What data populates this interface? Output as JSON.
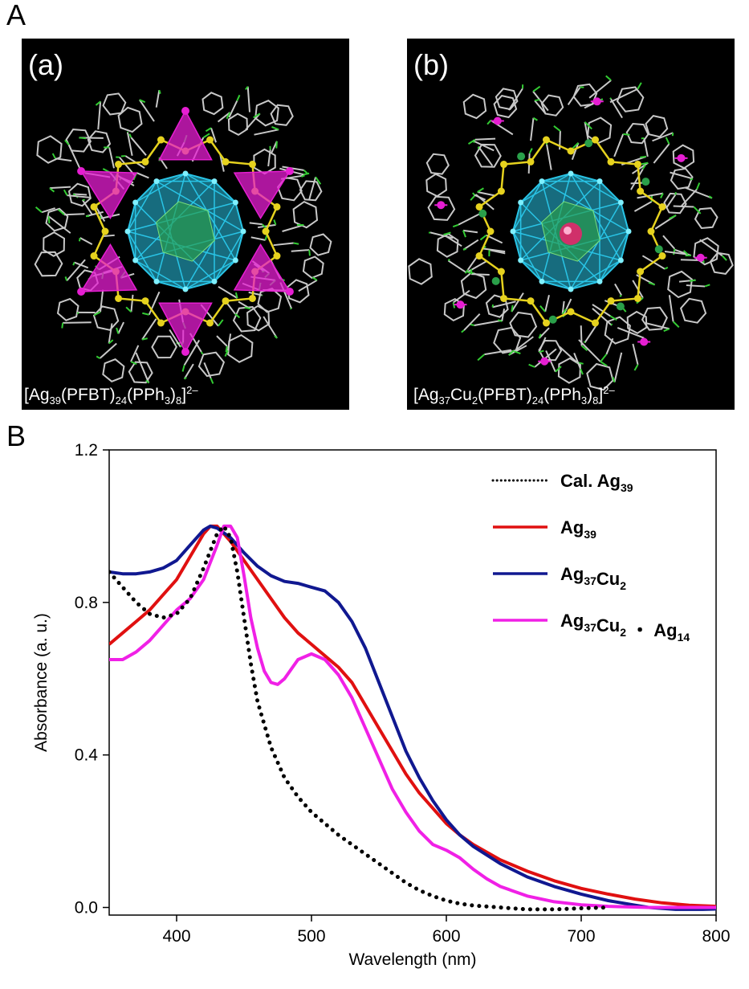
{
  "panels": {
    "A": {
      "letter": "A",
      "a": {
        "label": "(a)",
        "formula": {
          "lead": "[Ag",
          "s1": "39",
          "m1": "(PFBT)",
          "s2": "24",
          "m2": "(PPh",
          "s3": "3",
          "m3": ")",
          "s4": "8",
          "m4": "]",
          "charge": "2–"
        }
      },
      "b": {
        "label": "(b)",
        "formula": {
          "lead": "[Ag",
          "s1": "37",
          "m0": "Cu",
          "s0": "2",
          "m1": "(PFBT)",
          "s2": "24",
          "m2": "(PPh",
          "s3": "3",
          "m3": ")",
          "s4": "8",
          "m4": "]",
          "charge": "2–"
        }
      }
    },
    "B": {
      "letter": "B"
    }
  },
  "colors": {
    "ligand": "#c8c8c8",
    "fluorine": "#33cc33",
    "sulfur": "#e6d21e",
    "core": "#29c4e6",
    "phosphorus": "#e61ed2",
    "green_shell": "#2aa04a"
  },
  "chart_data": {
    "type": "line",
    "xlabel": "Wavelength (nm)",
    "ylabel": "Absorbance (a. u.)",
    "xlim": [
      350,
      800
    ],
    "ylim": [
      -0.02,
      1.2
    ],
    "x_ticks": [
      400,
      500,
      600,
      700,
      800
    ],
    "y_ticks": [
      0.0,
      0.4,
      0.8,
      1.2
    ],
    "y_tick_labels": [
      "0.0",
      "0.4",
      "0.8",
      "1.2"
    ],
    "grid": false,
    "legend_position": "top-right",
    "series": [
      {
        "key": "cal",
        "legend": {
          "main": "Cal. Ag",
          "sub": "39",
          "main2": "",
          "sub2": "",
          "main3": "",
          "sub3": ""
        },
        "color": "#000000",
        "style": "dotted",
        "points": [
          [
            350,
            0.88
          ],
          [
            360,
            0.84
          ],
          [
            370,
            0.8
          ],
          [
            380,
            0.77
          ],
          [
            390,
            0.76
          ],
          [
            400,
            0.77
          ],
          [
            410,
            0.81
          ],
          [
            420,
            0.89
          ],
          [
            430,
            0.98
          ],
          [
            435,
            1.0
          ],
          [
            440,
            0.97
          ],
          [
            445,
            0.88
          ],
          [
            450,
            0.76
          ],
          [
            455,
            0.64
          ],
          [
            460,
            0.54
          ],
          [
            470,
            0.42
          ],
          [
            480,
            0.34
          ],
          [
            490,
            0.29
          ],
          [
            500,
            0.25
          ],
          [
            510,
            0.22
          ],
          [
            520,
            0.19
          ],
          [
            530,
            0.165
          ],
          [
            540,
            0.14
          ],
          [
            550,
            0.115
          ],
          [
            560,
            0.09
          ],
          [
            570,
            0.065
          ],
          [
            580,
            0.045
          ],
          [
            590,
            0.03
          ],
          [
            600,
            0.018
          ],
          [
            610,
            0.01
          ],
          [
            620,
            0.005
          ],
          [
            640,
            0.0
          ],
          [
            660,
            -0.005
          ],
          [
            680,
            -0.005
          ],
          [
            700,
            -0.002
          ],
          [
            720,
            0.0
          ]
        ]
      },
      {
        "key": "ag39",
        "legend": {
          "main": "Ag",
          "sub": "39",
          "main2": "",
          "sub2": "",
          "main3": "",
          "sub3": ""
        },
        "color": "#e01010",
        "style": "solid",
        "points": [
          [
            350,
            0.69
          ],
          [
            360,
            0.72
          ],
          [
            370,
            0.75
          ],
          [
            380,
            0.78
          ],
          [
            390,
            0.82
          ],
          [
            400,
            0.86
          ],
          [
            410,
            0.92
          ],
          [
            420,
            0.98
          ],
          [
            425,
            1.0
          ],
          [
            430,
            1.0
          ],
          [
            440,
            0.96
          ],
          [
            450,
            0.91
          ],
          [
            460,
            0.86
          ],
          [
            470,
            0.81
          ],
          [
            480,
            0.76
          ],
          [
            490,
            0.72
          ],
          [
            500,
            0.69
          ],
          [
            510,
            0.66
          ],
          [
            520,
            0.63
          ],
          [
            530,
            0.59
          ],
          [
            540,
            0.53
          ],
          [
            550,
            0.47
          ],
          [
            560,
            0.41
          ],
          [
            570,
            0.35
          ],
          [
            580,
            0.3
          ],
          [
            590,
            0.26
          ],
          [
            600,
            0.22
          ],
          [
            610,
            0.19
          ],
          [
            620,
            0.165
          ],
          [
            640,
            0.125
          ],
          [
            660,
            0.095
          ],
          [
            680,
            0.07
          ],
          [
            700,
            0.05
          ],
          [
            720,
            0.035
          ],
          [
            740,
            0.022
          ],
          [
            760,
            0.012
          ],
          [
            780,
            0.006
          ],
          [
            800,
            0.003
          ]
        ]
      },
      {
        "key": "ag37",
        "legend": {
          "main": "Ag",
          "sub": "37",
          "main2": "Cu",
          "sub2": "2",
          "main3": "",
          "sub3": ""
        },
        "color": "#101890",
        "style": "solid",
        "points": [
          [
            350,
            0.88
          ],
          [
            360,
            0.875
          ],
          [
            370,
            0.875
          ],
          [
            380,
            0.88
          ],
          [
            390,
            0.89
          ],
          [
            400,
            0.91
          ],
          [
            410,
            0.95
          ],
          [
            420,
            0.99
          ],
          [
            425,
            1.0
          ],
          [
            430,
            0.995
          ],
          [
            440,
            0.97
          ],
          [
            450,
            0.93
          ],
          [
            460,
            0.895
          ],
          [
            470,
            0.87
          ],
          [
            480,
            0.855
          ],
          [
            490,
            0.85
          ],
          [
            500,
            0.84
          ],
          [
            510,
            0.83
          ],
          [
            520,
            0.8
          ],
          [
            530,
            0.75
          ],
          [
            540,
            0.68
          ],
          [
            550,
            0.59
          ],
          [
            560,
            0.5
          ],
          [
            570,
            0.41
          ],
          [
            580,
            0.34
          ],
          [
            590,
            0.28
          ],
          [
            600,
            0.23
          ],
          [
            610,
            0.19
          ],
          [
            620,
            0.16
          ],
          [
            640,
            0.115
          ],
          [
            660,
            0.08
          ],
          [
            680,
            0.055
          ],
          [
            700,
            0.035
          ],
          [
            720,
            0.018
          ],
          [
            740,
            0.006
          ],
          [
            750,
            0.0
          ],
          [
            770,
            -0.005
          ],
          [
            790,
            -0.005
          ],
          [
            800,
            -0.004
          ]
        ]
      },
      {
        "key": "ag37ag14",
        "legend": {
          "main": "Ag",
          "sub": "37",
          "main2": "Cu",
          "sub2": "2",
          "main3": " ・ Ag",
          "sub3": "14"
        },
        "color": "#f020e6",
        "style": "solid",
        "points": [
          [
            350,
            0.65
          ],
          [
            360,
            0.65
          ],
          [
            370,
            0.67
          ],
          [
            380,
            0.7
          ],
          [
            390,
            0.74
          ],
          [
            400,
            0.78
          ],
          [
            410,
            0.81
          ],
          [
            420,
            0.86
          ],
          [
            430,
            0.95
          ],
          [
            435,
            1.0
          ],
          [
            440,
            1.0
          ],
          [
            445,
            0.97
          ],
          [
            450,
            0.87
          ],
          [
            455,
            0.76
          ],
          [
            460,
            0.68
          ],
          [
            465,
            0.62
          ],
          [
            470,
            0.59
          ],
          [
            475,
            0.585
          ],
          [
            480,
            0.6
          ],
          [
            490,
            0.65
          ],
          [
            500,
            0.665
          ],
          [
            510,
            0.65
          ],
          [
            520,
            0.61
          ],
          [
            530,
            0.55
          ],
          [
            540,
            0.47
          ],
          [
            550,
            0.39
          ],
          [
            560,
            0.31
          ],
          [
            570,
            0.25
          ],
          [
            580,
            0.2
          ],
          [
            590,
            0.165
          ],
          [
            600,
            0.15
          ],
          [
            610,
            0.13
          ],
          [
            620,
            0.1
          ],
          [
            630,
            0.075
          ],
          [
            640,
            0.055
          ],
          [
            660,
            0.03
          ],
          [
            680,
            0.015
          ],
          [
            700,
            0.007
          ],
          [
            720,
            0.003
          ],
          [
            750,
            0.0
          ],
          [
            780,
            0.0
          ],
          [
            800,
            0.0
          ]
        ]
      }
    ]
  }
}
